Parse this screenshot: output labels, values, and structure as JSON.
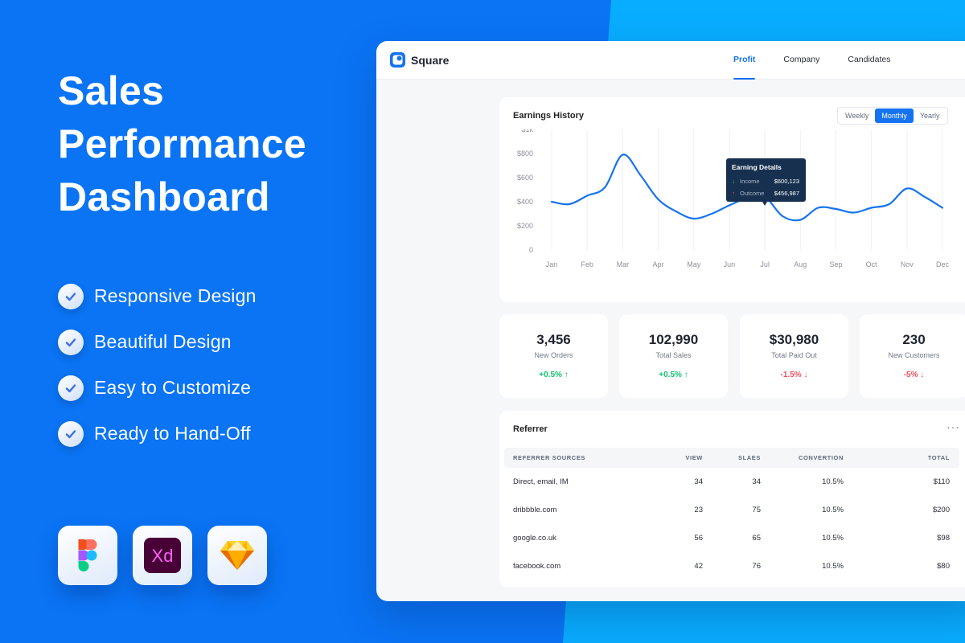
{
  "promo": {
    "title_lines": [
      "Sales",
      "Performance",
      "Dashboard"
    ],
    "features": [
      "Responsive Design",
      "Beautiful Design",
      "Easy to Customize",
      "Ready to Hand-Off"
    ],
    "apps": [
      "Figma",
      "Xd",
      "Sketch"
    ]
  },
  "app": {
    "brand": "Square",
    "nav": [
      "Profit",
      "Company",
      "Candidates"
    ],
    "nav_active": "Profit"
  },
  "earnings": {
    "title": "Earnings History",
    "periods": [
      "Weekly",
      "Monthly",
      "Yearly"
    ],
    "period_active": "Monthly",
    "tooltip": {
      "title": "Earning Details",
      "income_label": "Income",
      "income_value": "$600,123",
      "outcome_label": "Outcome",
      "outcome_value": "$456,987"
    }
  },
  "chart_data": {
    "type": "line",
    "title": "Earnings History",
    "x": [
      "Jan",
      "Feb",
      "Mar",
      "Apr",
      "May",
      "Jun",
      "Jul",
      "Aug",
      "Sep",
      "Oct",
      "Nov",
      "Dec"
    ],
    "y_tick_labels": [
      "$1k",
      "$800",
      "$600",
      "$400",
      "$200",
      "0"
    ],
    "ylim": [
      0,
      1000
    ],
    "grid": "vertical",
    "series": [
      {
        "color": "#1673f0",
        "points": [
          [
            "Jan",
            400
          ],
          [
            "Jan-Feb",
            380
          ],
          [
            "Feb",
            450
          ],
          [
            "Feb-Mar",
            520
          ],
          [
            "Mar",
            790
          ],
          [
            "Mar-Apr",
            620
          ],
          [
            "Apr",
            420
          ],
          [
            "Apr-May",
            320
          ],
          [
            "May",
            260
          ],
          [
            "May-Jun",
            300
          ],
          [
            "Jun",
            370
          ],
          [
            "Jun-Jul",
            430
          ],
          [
            "Jul",
            440
          ],
          [
            "Jul-Aug",
            280
          ],
          [
            "Aug",
            250
          ],
          [
            "Aug-Sep",
            350
          ],
          [
            "Sep",
            340
          ],
          [
            "Sep-Oct",
            310
          ],
          [
            "Oct",
            350
          ],
          [
            "Oct-Nov",
            380
          ],
          [
            "Nov",
            510
          ],
          [
            "Nov-Dec",
            440
          ],
          [
            "Dec",
            350
          ]
        ]
      }
    ]
  },
  "stats": [
    {
      "value": "3,456",
      "label": "New Orders",
      "change": "+0.5%",
      "direction": "up"
    },
    {
      "value": "102,990",
      "label": "Total Sales",
      "change": "+0.5%",
      "direction": "up"
    },
    {
      "value": "$30,980",
      "label": "Total Paid Out",
      "change": "-1.5%",
      "direction": "down"
    },
    {
      "value": "230",
      "label": "New Customers",
      "change": "-5%",
      "direction": "down"
    }
  ],
  "referrer": {
    "title": "Referrer",
    "more": "···",
    "columns": [
      "REFERRER SOURCES",
      "VIEW",
      "SLAES",
      "CONVERTION",
      "TOTAL"
    ],
    "rows": [
      [
        "Direct, email, IM",
        "34",
        "34",
        "10.5%",
        "$110"
      ],
      [
        "dribbble.com",
        "23",
        "75",
        "10.5%",
        "$200"
      ],
      [
        "google.co.uk",
        "56",
        "65",
        "10.5%",
        "$98"
      ],
      [
        "facebook.com",
        "42",
        "76",
        "10.5%",
        "$80"
      ]
    ]
  },
  "colors": {
    "background": "#0a74f5",
    "accent": "#1673f0",
    "positive": "#10c36a",
    "negative": "#f0505a",
    "tooltip_bg": "#17304f"
  }
}
